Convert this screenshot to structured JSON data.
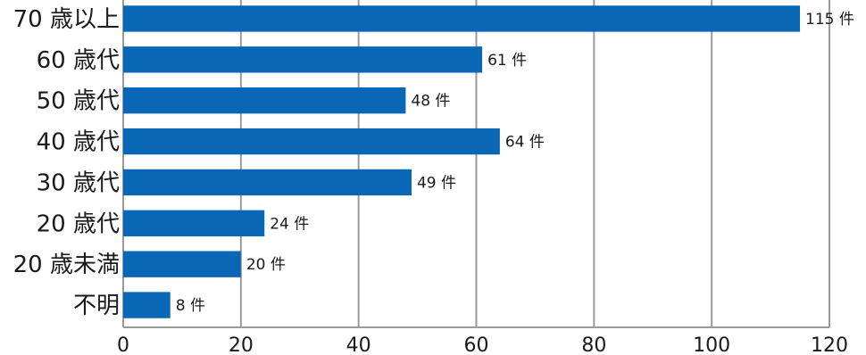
{
  "chart_data": {
    "type": "bar",
    "orientation": "horizontal",
    "categories": [
      "70 歳以上",
      "60 歳代",
      "50 歳代",
      "40 歳代",
      "30 歳代",
      "20 歳代",
      "20 歳未満",
      "不明"
    ],
    "values": [
      115,
      61,
      48,
      64,
      49,
      24,
      20,
      8
    ],
    "value_labels": [
      "115 件",
      "61 件",
      "48 件",
      "64 件",
      "49 件",
      "24 件",
      "20 件",
      "8 件"
    ],
    "unit": "件",
    "title": "",
    "xlabel": "",
    "ylabel": "",
    "xlim": [
      0,
      120
    ],
    "xticks": [
      "0",
      "20",
      "40",
      "60",
      "80",
      "100",
      "120"
    ],
    "grid": true,
    "bar_color": "#0a67b5",
    "grid_color": "#9a9a9a"
  }
}
